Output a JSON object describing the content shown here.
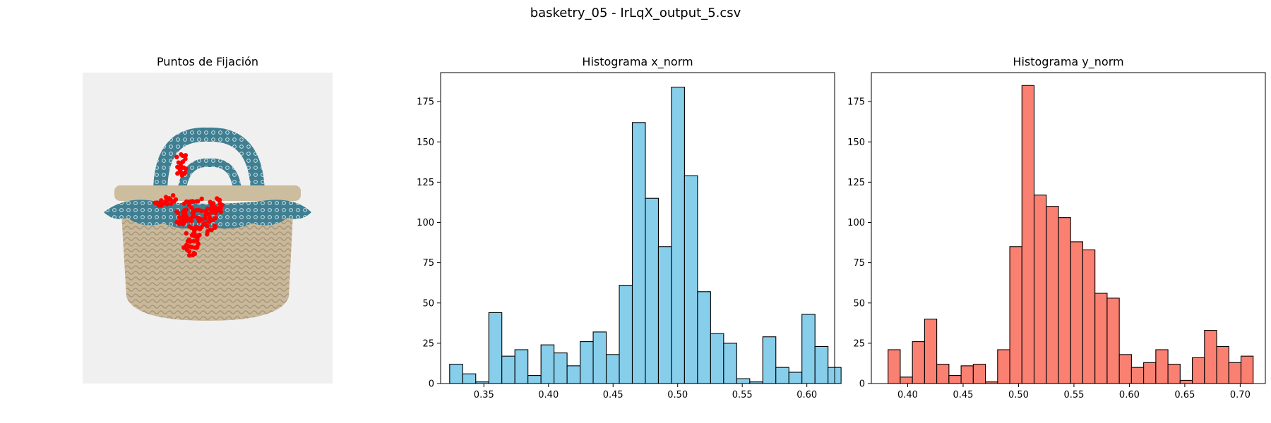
{
  "suptitle": "basketry_05 - IrLqX_output_5.csv",
  "image_panel": {
    "title": "Puntos de Fijación",
    "fixation_color": "#ff0000",
    "background_color": "#f0f0f0"
  },
  "chart_data": [
    {
      "type": "bar",
      "title": "Histograma x_norm",
      "xlabel": "",
      "ylabel": "",
      "color": "#87ceeb",
      "edgecolor": "#000000",
      "xlim": [
        0.3165,
        0.6215
      ],
      "ylim": [
        0,
        193
      ],
      "bin_start": 0.3235,
      "bin_width": 0.0101,
      "values": [
        12,
        6,
        1,
        44,
        17,
        21,
        5,
        24,
        19,
        11,
        26,
        32,
        18,
        61,
        162,
        115,
        85,
        184,
        129,
        57,
        31,
        25,
        3,
        1,
        29,
        10,
        7,
        43,
        23,
        10
      ],
      "xticks": [
        0.35,
        0.4,
        0.45,
        0.5,
        0.55,
        0.6
      ],
      "xtick_labels": [
        "0.35",
        "0.40",
        "0.45",
        "0.50",
        "0.55",
        "0.60"
      ],
      "yticks": [
        0,
        25,
        50,
        75,
        100,
        125,
        150,
        175
      ],
      "ytick_labels": [
        "0",
        "25",
        "50",
        "75",
        "100",
        "125",
        "150",
        "175"
      ],
      "grid": false
    },
    {
      "type": "bar",
      "title": "Histograma y_norm",
      "xlabel": "",
      "ylabel": "",
      "color": "#fa8072",
      "edgecolor": "#000000",
      "xlim": [
        0.3672,
        0.7227
      ],
      "ylim": [
        0,
        193
      ],
      "bin_start": 0.3823,
      "bin_width": 0.01098,
      "values": [
        21,
        4,
        26,
        40,
        12,
        5,
        11,
        12,
        1,
        21,
        85,
        185,
        117,
        110,
        103,
        88,
        83,
        56,
        53,
        18,
        10,
        13,
        21,
        12,
        2,
        16,
        33,
        23,
        13,
        17
      ],
      "xticks": [
        0.4,
        0.45,
        0.5,
        0.55,
        0.6,
        0.65,
        0.7
      ],
      "xtick_labels": [
        "0.40",
        "0.45",
        "0.50",
        "0.55",
        "0.60",
        "0.65",
        "0.70"
      ],
      "yticks": [
        0,
        25,
        50,
        75,
        100,
        125,
        150,
        175
      ],
      "ytick_labels": [
        "0",
        "25",
        "50",
        "75",
        "100",
        "125",
        "150",
        "175"
      ],
      "grid": false
    }
  ]
}
